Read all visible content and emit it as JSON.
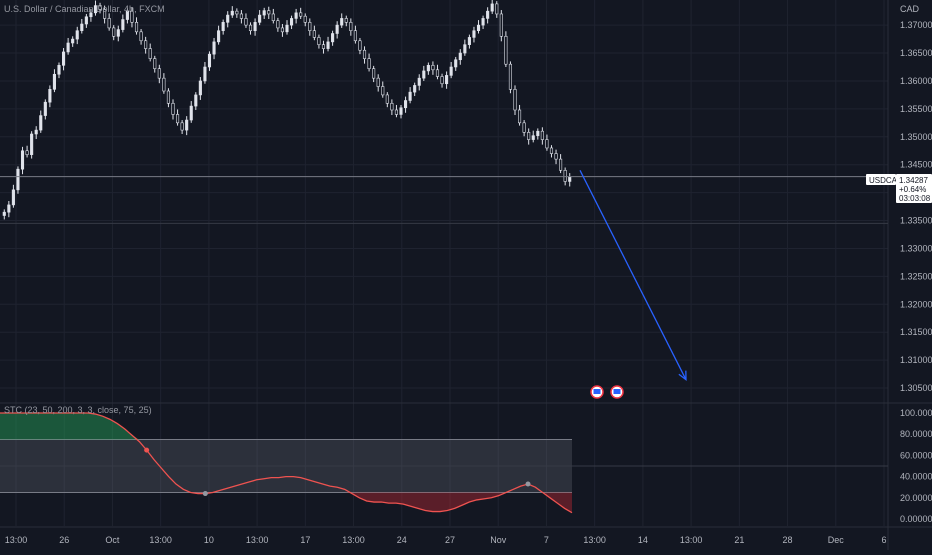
{
  "chart_data": {
    "type": "candlestick",
    "title": "U.S. Dollar / Canadian Dollar, 4h, FXCM",
    "symbol": "USDCAD",
    "currency": "CAD",
    "last_price": "1.34287",
    "change": "+0.64%",
    "countdown": "03:03:08",
    "grid": true,
    "price_axis": {
      "ticks": [
        "1.37000",
        "1.36500",
        "1.36000",
        "1.35500",
        "1.35000",
        "1.34500",
        "1.34000",
        "1.33500",
        "1.33000",
        "1.32500",
        "1.32000",
        "1.31500",
        "1.31000",
        "1.30500"
      ],
      "range": [
        1.3025,
        1.3745
      ]
    },
    "time_axis": {
      "ticks": [
        "13:00",
        "26",
        "Oct",
        "13:00",
        "10",
        "13:00",
        "17",
        "13:00",
        "24",
        "27",
        "Nov",
        "7",
        "13:00",
        "14",
        "13:00",
        "21",
        "28",
        "Dec",
        "6"
      ]
    },
    "price_series_close_estimate": [
      1.3365,
      1.3378,
      1.3405,
      1.3442,
      1.3475,
      1.3468,
      1.3505,
      1.3512,
      1.3538,
      1.3562,
      1.3585,
      1.3612,
      1.3628,
      1.3652,
      1.3668,
      1.3675,
      1.369,
      1.3702,
      1.3715,
      1.3722,
      1.3735,
      1.3728,
      1.3712,
      1.3695,
      1.368,
      1.3692,
      1.371,
      1.3725,
      1.3705,
      1.3688,
      1.3672,
      1.3658,
      1.364,
      1.3622,
      1.3605,
      1.3582,
      1.356,
      1.354,
      1.3525,
      1.3512,
      1.353,
      1.3555,
      1.3575,
      1.36,
      1.3625,
      1.3648,
      1.367,
      1.369,
      1.3705,
      1.3718,
      1.3725,
      1.372,
      1.3712,
      1.37,
      1.369,
      1.3705,
      1.3718,
      1.3726,
      1.372,
      1.3708,
      1.3695,
      1.3688,
      1.37,
      1.3712,
      1.3722,
      1.3716,
      1.3705,
      1.369,
      1.3678,
      1.3665,
      1.3658,
      1.367,
      1.3685,
      1.37,
      1.3712,
      1.3705,
      1.369,
      1.3672,
      1.3655,
      1.364,
      1.3622,
      1.3605,
      1.359,
      1.3575,
      1.356,
      1.3548,
      1.354,
      1.3552,
      1.3565,
      1.358,
      1.3592,
      1.3605,
      1.3618,
      1.3628,
      1.362,
      1.3608,
      1.3595,
      1.361,
      1.3625,
      1.3638,
      1.365,
      1.3665,
      1.3678,
      1.369,
      1.37,
      1.3712,
      1.3725,
      1.3738,
      1.372,
      1.368,
      1.363,
      1.3585,
      1.3548,
      1.3525,
      1.3508,
      1.3495,
      1.3502,
      1.351,
      1.3495,
      1.348,
      1.347,
      1.346,
      1.344,
      1.342,
      1.3428
    ],
    "forecast_arrow": {
      "from_price": 1.344,
      "to_price": 1.3065
    },
    "stc": {
      "label": "STC (23, 50, 200, 3, 3, close, 75, 25)",
      "axis_ticks": [
        "100.00000",
        "80.00000",
        "60.00000",
        "40.00000",
        "20.00000",
        "0.00000"
      ],
      "range": [
        0,
        100
      ],
      "upper_band": 75,
      "lower_band": 25,
      "mid_line": 50,
      "values": [
        100,
        100,
        100,
        100,
        100,
        100,
        100,
        100,
        100,
        100,
        100,
        100,
        100,
        99,
        97,
        94,
        90,
        85,
        79,
        73,
        65,
        56,
        48,
        40,
        33,
        28,
        25,
        24,
        24,
        25,
        27,
        29,
        31,
        33,
        35,
        37,
        38,
        39,
        39,
        40,
        40,
        39,
        37,
        35,
        33,
        31,
        30,
        28,
        24,
        20,
        17,
        16,
        16,
        15,
        15,
        14,
        12,
        10,
        8,
        7,
        7,
        8,
        10,
        13,
        16,
        18,
        19,
        20,
        22,
        25,
        28,
        31,
        33,
        30,
        25,
        20,
        15,
        10,
        6
      ],
      "cross_markers": [
        20,
        28,
        72
      ]
    }
  }
}
